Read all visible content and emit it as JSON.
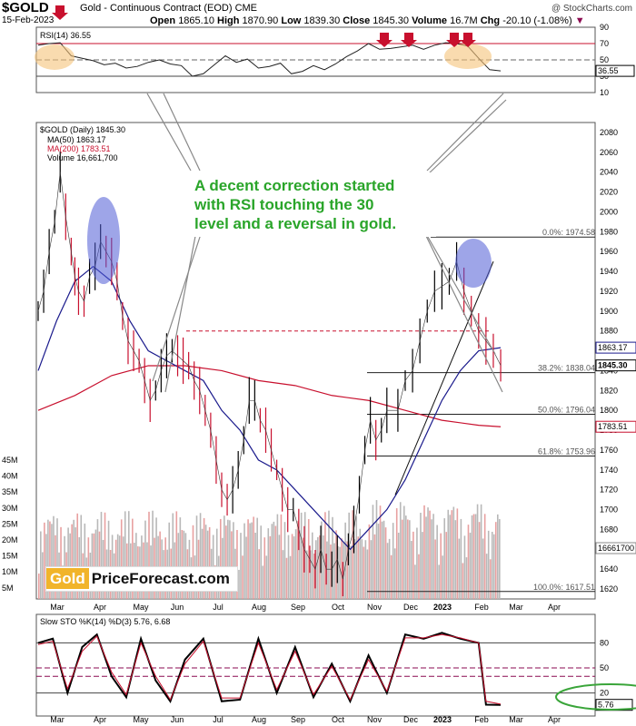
{
  "header": {
    "ticker": "$GOLD",
    "name": "Gold - Continuous Contract (EOD)",
    "exchange": "CME",
    "date": "15-Feb-2023",
    "credit": "@ StockCharts.com",
    "open_label": "Open",
    "open": "1865.10",
    "high_label": "High",
    "high": "1870.90",
    "low_label": "Low",
    "low": "1839.30",
    "close_label": "Close",
    "close": "1845.30",
    "volume_label": "Volume",
    "volume": "16.7M",
    "chg_label": "Chg",
    "chg": "-20.10 (-1.08%)"
  },
  "annotation": {
    "line1": "A decent correction started",
    "line2": "with RSI touching the 30",
    "line3": "level and a reversal in gold."
  },
  "watermark": {
    "part1": "Gold",
    "part2": "PriceForecast.com"
  },
  "colors": {
    "price_up": "#000000",
    "price_down": "#c8102e",
    "ma50": "#1a1a8c",
    "ma200": "#c8102e",
    "highlight_orange": "#f5c37a",
    "highlight_blue": "#4f5bd5",
    "arrow": "#c8102e",
    "annotation_text": "#2aa52a",
    "sto_oval": "#3aa53a"
  },
  "chart_data": [
    {
      "type": "line",
      "title": "RSI(14) 36.55",
      "ylim": [
        10,
        90
      ],
      "y_ticks": [
        90,
        70,
        50,
        30,
        10
      ],
      "reference_lines": [
        70,
        50,
        30
      ],
      "last_value_label": "36.55",
      "series": [
        {
          "name": "RSI(14)",
          "x": [
            0,
            6,
            12,
            18,
            24,
            30,
            36,
            42,
            48,
            54,
            60,
            66,
            72,
            78,
            84,
            90,
            96,
            102,
            108,
            114,
            120,
            126,
            132,
            138,
            144,
            150,
            156,
            162,
            168,
            174,
            180,
            186,
            192,
            198,
            204,
            210,
            216,
            222,
            228,
            234,
            240,
            246,
            252
          ],
          "values": [
            68,
            70,
            71,
            55,
            52,
            49,
            44,
            46,
            40,
            42,
            47,
            50,
            45,
            43,
            30,
            33,
            44,
            55,
            47,
            51,
            40,
            42,
            46,
            33,
            36,
            43,
            38,
            45,
            54,
            61,
            70,
            63,
            64,
            66,
            68,
            63,
            68,
            71,
            70,
            67,
            52,
            38,
            36.55
          ]
        }
      ]
    },
    {
      "type": "line",
      "title": "$GOLD (Daily) 1845.30",
      "x_tick_labels": [
        "Mar",
        "Apr",
        "May",
        "Jun",
        "Jul",
        "Aug",
        "Sep",
        "Oct",
        "Nov",
        "Dec",
        "2023",
        "Feb",
        "Mar",
        "Apr"
      ],
      "ylim": [
        1610,
        2090
      ],
      "y_ticks": [
        1620,
        1640,
        1660,
        1680,
        1700,
        1720,
        1740,
        1760,
        1780,
        1800,
        1820,
        1840,
        1860,
        1880,
        1900,
        1920,
        1940,
        1960,
        1980,
        2000,
        2020,
        2040,
        2060,
        2080
      ],
      "legend": [
        "MA(50) 1863.17",
        "MA(200) 1783.51",
        "Volume 16,661,700"
      ],
      "volume_ticks": [
        "45M",
        "40M",
        "35M",
        "30M",
        "25M",
        "20M",
        "15M",
        "10M",
        "5M"
      ],
      "price_labels": {
        "ma50": "1863.17",
        "close": "1845.30",
        "ma200": "1783.51",
        "volume": "16661700"
      },
      "fib_levels": [
        {
          "label": "0.0%: 1974.58",
          "value": 1974.58
        },
        {
          "label": "38.2%: 1838.04",
          "value": 1838.04
        },
        {
          "label": "50.0%: 1796.04",
          "value": 1796.04
        },
        {
          "label": "61.8%: 1753.96",
          "value": 1753.96
        },
        {
          "label": "100.0%: 1617.51",
          "value": 1617.51
        }
      ],
      "series": [
        {
          "name": "$GOLD",
          "x": [
            0,
            3,
            6,
            9,
            12,
            15,
            18,
            20,
            22,
            25,
            28,
            31,
            34,
            37,
            40,
            43,
            46,
            49,
            52,
            55,
            58,
            61,
            64,
            67,
            70,
            73,
            76,
            79,
            82,
            85,
            88,
            91,
            94,
            97,
            100,
            103,
            106,
            109,
            112,
            115,
            118,
            121,
            124,
            127,
            130,
            133,
            136,
            139,
            142,
            145,
            148,
            151,
            154,
            157,
            160,
            163,
            166,
            169,
            172,
            175,
            178,
            181,
            184,
            187,
            190,
            196,
            200,
            204,
            208,
            212,
            216,
            220,
            224,
            228,
            232,
            236,
            240,
            244,
            248,
            252
          ],
          "values": [
            1900,
            1920,
            1960,
            1990,
            2040,
            1995,
            1960,
            1935,
            1920,
            1910,
            1935,
            1945,
            1970,
            1960,
            1950,
            1930,
            1895,
            1870,
            1860,
            1850,
            1830,
            1810,
            1820,
            1840,
            1855,
            1860,
            1855,
            1850,
            1845,
            1830,
            1820,
            1800,
            1780,
            1750,
            1720,
            1710,
            1720,
            1740,
            1770,
            1810,
            1810,
            1790,
            1780,
            1760,
            1740,
            1720,
            1700,
            1700,
            1680,
            1660,
            1650,
            1640,
            1660,
            1640,
            1640,
            1650,
            1630,
            1660,
            1680,
            1715,
            1760,
            1790,
            1770,
            1780,
            1800,
            1800,
            1830,
            1840,
            1870,
            1900,
            1920,
            1925,
            1930,
            1950,
            1920,
            1900,
            1880,
            1870,
            1860,
            1845.3
          ]
        },
        {
          "name": "MA(50)",
          "x": [
            0,
            10,
            20,
            30,
            40,
            50,
            60,
            70,
            80,
            90,
            100,
            110,
            120,
            130,
            140,
            150,
            160,
            170,
            180,
            190,
            200,
            210,
            220,
            230,
            240,
            252
          ],
          "values": [
            1840,
            1890,
            1930,
            1945,
            1930,
            1890,
            1860,
            1850,
            1840,
            1830,
            1800,
            1780,
            1750,
            1740,
            1720,
            1700,
            1680,
            1660,
            1680,
            1700,
            1730,
            1770,
            1810,
            1840,
            1860,
            1863.17
          ]
        },
        {
          "name": "MA(200)",
          "x": [
            0,
            20,
            40,
            60,
            80,
            100,
            120,
            140,
            160,
            180,
            200,
            220,
            240,
            252
          ],
          "values": [
            1800,
            1815,
            1835,
            1845,
            1845,
            1840,
            1830,
            1825,
            1815,
            1810,
            1800,
            1790,
            1785,
            1783.51
          ]
        }
      ]
    },
    {
      "type": "line",
      "title": "Slow STO %K(14) %D(3) 5.76, 6.68",
      "ylim": [
        0,
        100
      ],
      "y_ticks": [
        80,
        50,
        20
      ],
      "reference_lines": [
        80,
        50,
        40,
        20
      ],
      "last_value_label": "5.76",
      "series": [
        {
          "name": "%K",
          "x": [
            0,
            8,
            16,
            24,
            32,
            40,
            48,
            56,
            64,
            72,
            80,
            90,
            100,
            110,
            120,
            130,
            140,
            150,
            160,
            170,
            180,
            190,
            200,
            210,
            220,
            230,
            240,
            244,
            252
          ],
          "values": [
            80,
            85,
            20,
            75,
            90,
            40,
            15,
            85,
            35,
            10,
            60,
            85,
            10,
            12,
            85,
            20,
            75,
            15,
            55,
            10,
            65,
            20,
            90,
            85,
            92,
            85,
            80,
            6,
            5.76
          ]
        },
        {
          "name": "%D",
          "x": [
            0,
            8,
            16,
            24,
            32,
            40,
            48,
            56,
            64,
            72,
            80,
            90,
            100,
            110,
            120,
            130,
            140,
            150,
            160,
            170,
            180,
            190,
            200,
            210,
            220,
            230,
            240,
            244,
            252
          ],
          "values": [
            78,
            82,
            25,
            70,
            88,
            45,
            18,
            80,
            40,
            12,
            55,
            82,
            14,
            14,
            80,
            24,
            70,
            18,
            52,
            12,
            60,
            22,
            86,
            86,
            90,
            86,
            80,
            10,
            6.68
          ]
        }
      ]
    }
  ]
}
